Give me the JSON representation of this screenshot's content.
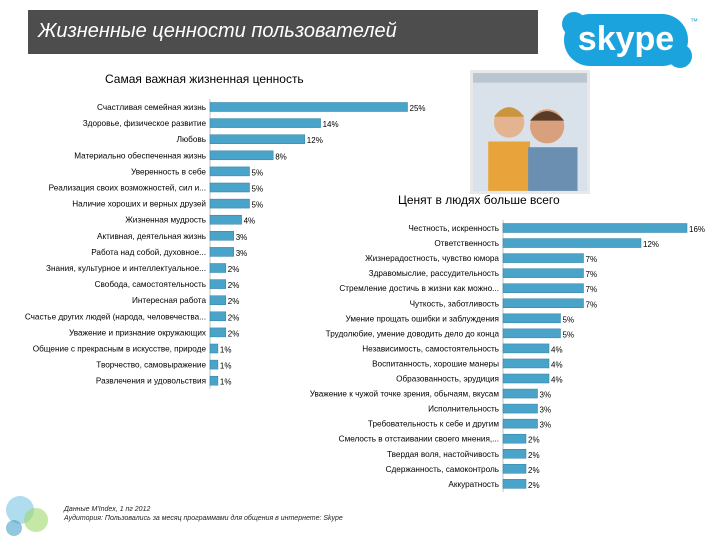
{
  "header": {
    "title": "Жизненные ценности пользователей"
  },
  "logo": {
    "text": "skype",
    "tm": "™"
  },
  "colors": {
    "bar": "#4aa3c9",
    "bar_stroke": "#2f7fa3",
    "title_bg": "#4d4d4d",
    "logo": "#1ba3dd"
  },
  "chart_data": [
    {
      "type": "bar",
      "orientation": "horizontal",
      "title": "Самая важная жизненная ценность",
      "unit": "%",
      "categories": [
        "Счастливая семейная жизнь",
        "Здоровье, физическое развитие",
        "Любовь",
        "Материально обеспеченная жизнь",
        "Уверенность в себе",
        "Реализация своих возможностей, сил и...",
        "Наличие хороших и верных друзей",
        "Жизненная мудрость",
        "Активная, деятельная жизнь",
        "Работа над собой, духовное...",
        "Знания, культурное и интеллектуальное...",
        "Свобода, самостоятельность",
        "Интересная работа",
        "Счастье других людей (народа, человечества...",
        "Уважение и признание окружающих",
        "Общение с прекрасным в искусстве, природе",
        "Творчество, самовыражение",
        "Развлечения и удовольствия"
      ],
      "values": [
        25,
        14,
        12,
        8,
        5,
        5,
        5,
        4,
        3,
        3,
        2,
        2,
        2,
        2,
        2,
        1,
        1,
        1
      ],
      "labels": [
        "25%",
        "14%",
        "12%",
        "8%",
        "5%",
        "5%",
        "5%",
        "4%",
        "3%",
        "3%",
        "2%",
        "2%",
        "2%",
        "2%",
        "2%",
        "1%",
        "1%",
        "1%"
      ]
    },
    {
      "type": "bar",
      "orientation": "horizontal",
      "title": "Ценят в людях больше всего",
      "unit": "%",
      "categories": [
        "Честность, искренность",
        "Ответственность",
        "Жизнерадостность, чувство юмора",
        "Здравомыслие, рассудительность",
        "Стремление достичь в жизни как можно...",
        "Чуткость, заботливость",
        "Умение прощать ошибки и заблуждения",
        "Трудолюбие, умение доводить дело до конца",
        "Независимость, самостоятельность",
        "Воспитанность, хорошие манеры",
        "Образованность, эрудиция",
        "Уважение к чужой точке зрения, обычаям, вкусам",
        "Исполнительность",
        "Требовательность к себе и другим",
        "Смелость в отстаивании своего мнения,...",
        "Твердая воля, настойчивость",
        "Сдержанность, самоконтроль",
        "Аккуратность"
      ],
      "values": [
        16,
        12,
        7,
        7,
        7,
        7,
        5,
        5,
        4,
        4,
        4,
        3,
        3,
        3,
        2,
        2,
        2,
        2
      ],
      "labels": [
        "16%",
        "12%",
        "7%",
        "7%",
        "7%",
        "7%",
        "5%",
        "5%",
        "4%",
        "4%",
        "4%",
        "3%",
        "3%",
        "3%",
        "2%",
        "2%",
        "2%",
        "2%"
      ]
    }
  ],
  "footer": {
    "line1": "Данные M'Index, 1 пг 2012",
    "line2": "Аудитория: Пользовались за месяц программами для общения в интернете: Skype"
  }
}
